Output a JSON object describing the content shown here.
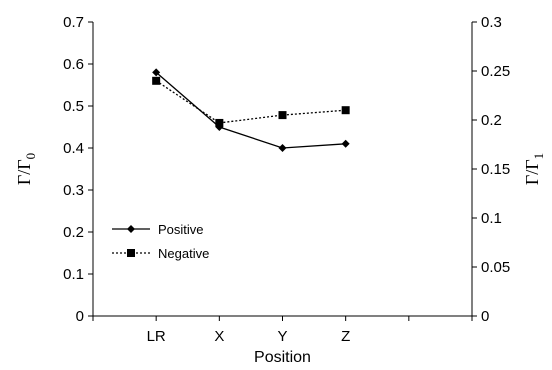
{
  "chart_data": {
    "type": "line",
    "categories": [
      "LR",
      "X",
      "Y",
      "Z"
    ],
    "xlabel": "Position",
    "ylabel_left": {
      "main": "Γ/Γ",
      "sub": "0"
    },
    "ylabel_right": {
      "main": "Γ/Γ",
      "sub": "1"
    },
    "ylim_left": [
      0,
      0.7
    ],
    "ylim_right": [
      0,
      0.3
    ],
    "yticks_left": [
      "0",
      "0.1",
      "0.2",
      "0.3",
      "0.4",
      "0.5",
      "0.6",
      "0.7"
    ],
    "yticks_right": [
      "0",
      "0.05",
      "0.1",
      "0.15",
      "0.2",
      "0.25",
      "0.3"
    ],
    "grid": false,
    "legend_position": "left",
    "series": [
      {
        "name": "Positive",
        "axis": "left",
        "values": [
          0.58,
          0.45,
          0.4,
          0.41
        ],
        "marker": "diamond",
        "line_style": "solid",
        "color": "#000000"
      },
      {
        "name": "Negative",
        "axis": "right",
        "values": [
          0.24,
          0.197,
          0.205,
          0.21
        ],
        "marker": "square",
        "line_style": "dotted",
        "color": "#000000"
      }
    ]
  }
}
